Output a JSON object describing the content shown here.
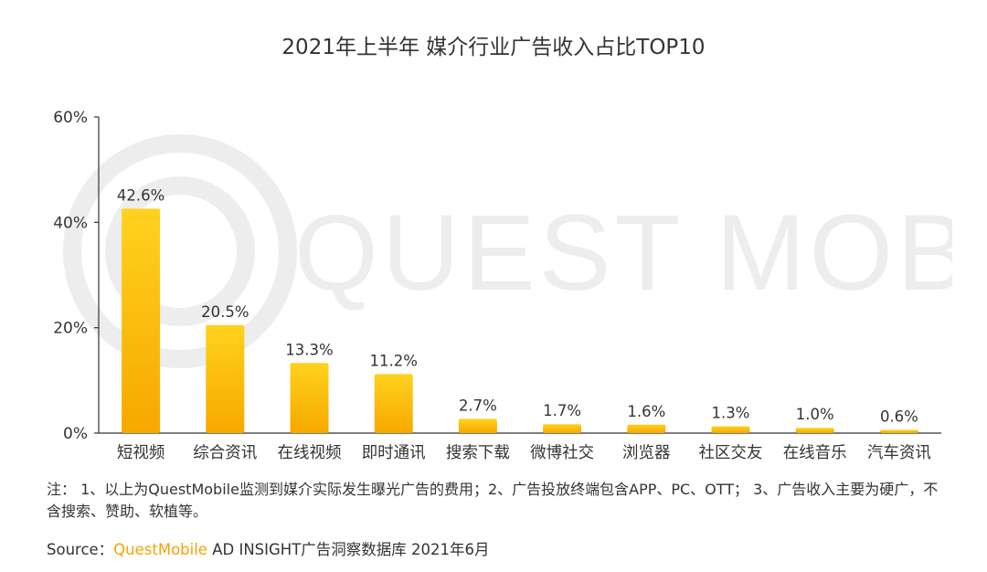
{
  "chart_data": {
    "type": "bar",
    "title": "2021年上半年 媒介行业广告收入占比TOP10",
    "categories": [
      "短视频",
      "综合资讯",
      "在线视频",
      "即时通讯",
      "搜索下载",
      "微博社交",
      "浏览器",
      "社区交友",
      "在线音乐",
      "汽车资讯"
    ],
    "values": [
      42.6,
      20.5,
      13.3,
      11.2,
      2.7,
      1.7,
      1.6,
      1.3,
      1.0,
      0.6
    ],
    "value_labels": [
      "42.6%",
      "20.5%",
      "13.3%",
      "11.2%",
      "2.7%",
      "1.7%",
      "1.6%",
      "1.3%",
      "1.0%",
      "0.6%"
    ],
    "ylim": [
      0,
      60
    ],
    "yticks": [
      0,
      20,
      40,
      60
    ],
    "ytick_labels": [
      "0%",
      "20%",
      "40%",
      "60%"
    ],
    "xlabel": "",
    "ylabel": "",
    "grid": false,
    "legend": "none",
    "colors": {
      "bar_top": "#FFD21F",
      "bar_bottom": "#F7A800",
      "axis": "#333333"
    }
  },
  "watermark": {
    "text": "QUEST MOBILE",
    "color": "#EDEDED"
  },
  "note": "注： 1、以上为QuestMobile监测到媒介实际发生曝光广告的费用；2、广告投放终端包含APP、PC、OTT； 3、广告收入主要为硬广，不含搜索、赞助、软植等。",
  "source": {
    "prefix": "Source：",
    "brand": "QuestMobile",
    "suffix": " AD INSIGHT广告洞察数据库 2021年6月"
  }
}
